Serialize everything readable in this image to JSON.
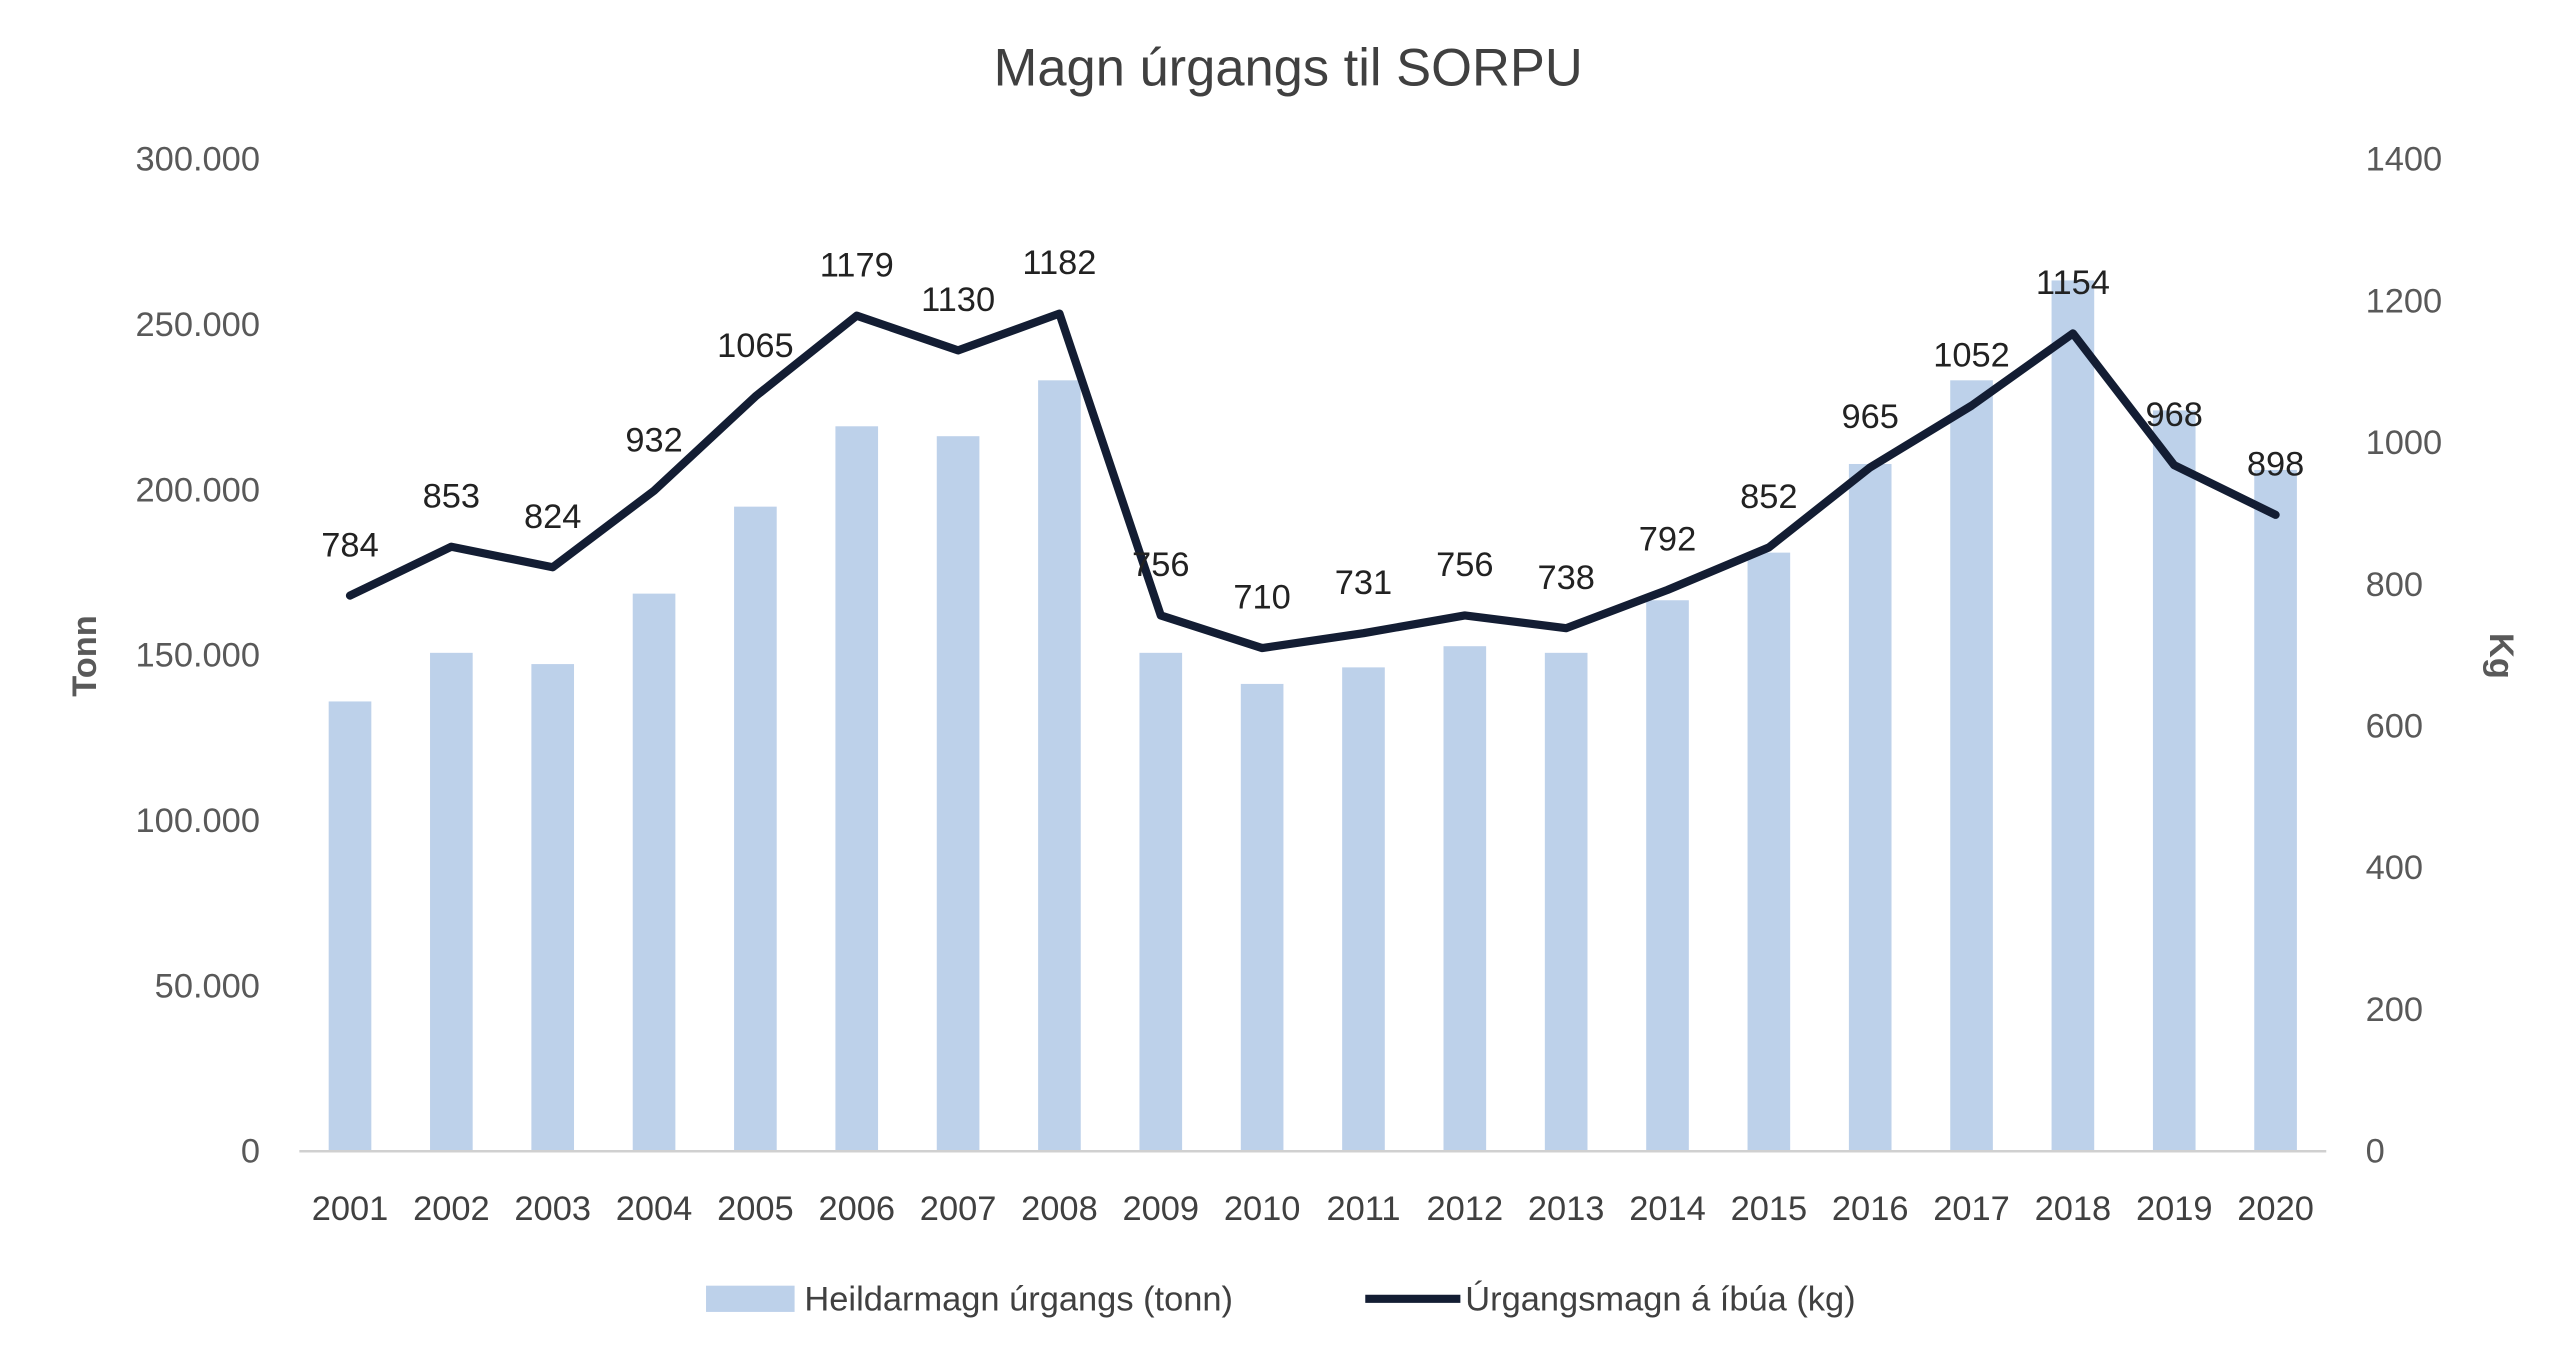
{
  "chart_data": {
    "type": "bar",
    "title": "Magn úrgangs til SORPU",
    "categories": [
      "2001",
      "2002",
      "2003",
      "2004",
      "2005",
      "2006",
      "2007",
      "2008",
      "2009",
      "2010",
      "2011",
      "2012",
      "2013",
      "2014",
      "2015",
      "2016",
      "2017",
      "2018",
      "2019",
      "2020"
    ],
    "series": [
      {
        "name": "Heildarmagn úrgangs (tonn)",
        "type": "bar",
        "axis": "left",
        "color": "#bdd1ea",
        "values": [
          136000,
          150700,
          147300,
          168600,
          194900,
          219200,
          216200,
          233100,
          150700,
          141300,
          146300,
          152700,
          150700,
          166600,
          181000,
          207800,
          233100,
          263300,
          224000,
          206000
        ]
      },
      {
        "name": "Úrgangsmagn á íbúa (kg)",
        "type": "line",
        "axis": "right",
        "color": "#131d33",
        "values": [
          784,
          853,
          824,
          932,
          1065,
          1179,
          1130,
          1182,
          756,
          710,
          731,
          756,
          738,
          792,
          852,
          965,
          1052,
          1154,
          968,
          898
        ],
        "labels": [
          "784",
          "853",
          "824",
          "932",
          "1065",
          "1179",
          "1130",
          "1182",
          "756",
          "710",
          "731",
          "756",
          "738",
          "792",
          "852",
          "965",
          "1052",
          "1154",
          "968",
          "898"
        ]
      }
    ],
    "ylabel": "Tonn",
    "ylabel_right": "Kg",
    "ylim": [
      0,
      300000
    ],
    "ylim_right": [
      0,
      1400
    ],
    "yticks": [
      "0",
      "50.000",
      "100.000",
      "150.000",
      "200.000",
      "250.000",
      "300.000"
    ],
    "yticks_right": [
      "0",
      "200",
      "400",
      "600",
      "800",
      "1000",
      "1200",
      "1400"
    ],
    "grid": false,
    "legend": "bottom"
  }
}
